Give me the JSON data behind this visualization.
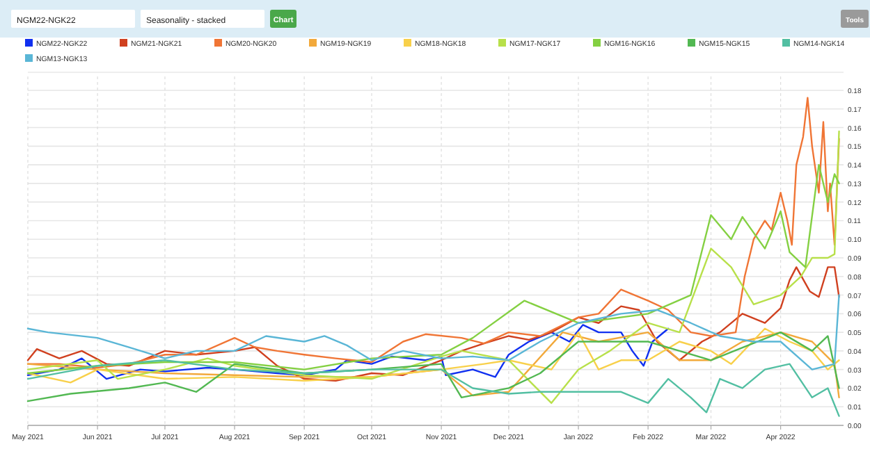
{
  "chart_data": {
    "type": "line",
    "annotations": [
      "NGM22-NGK22",
      "Seasonality - stacked",
      "Chart",
      "Tools"
    ],
    "legend": "top",
    "grid": true,
    "marker": "none",
    "line_style": "solid",
    "xlim": [
      "2021-05-01",
      "2022-04-29"
    ],
    "xticks": [
      {
        "value": "2021-05-01",
        "label": "May 2021"
      },
      {
        "value": "2021-06-01",
        "label": "Jun 2021"
      },
      {
        "value": "2021-07-01",
        "label": "Jul 2021"
      },
      {
        "value": "2021-08-01",
        "label": "Aug 2021"
      },
      {
        "value": "2021-09-01",
        "label": "Sep 2021"
      },
      {
        "value": "2021-10-01",
        "label": "Oct 2021"
      },
      {
        "value": "2021-11-01",
        "label": "Nov 2021"
      },
      {
        "value": "2021-12-01",
        "label": "Dec 2021"
      },
      {
        "value": "2022-01-01",
        "label": "Jan 2022"
      },
      {
        "value": "2022-02-01",
        "label": "Feb 2022"
      },
      {
        "value": "2022-03-01",
        "label": "Mar 2022"
      },
      {
        "value": "2022-04-01",
        "label": "Apr 2022"
      }
    ],
    "ylim": [
      0,
      0.18
    ],
    "yticks": [
      {
        "value": 0,
        "label": "0.00"
      },
      {
        "value": 0.01,
        "label": "0.01"
      },
      {
        "value": 0.02,
        "label": "0.02"
      },
      {
        "value": 0.03,
        "label": "0.03"
      },
      {
        "value": 0.04,
        "label": "0.04"
      },
      {
        "value": 0.05,
        "label": "0.05"
      },
      {
        "value": 0.06,
        "label": "0.06"
      },
      {
        "value": 0.07,
        "label": "0.07"
      },
      {
        "value": 0.08,
        "label": "0.08"
      },
      {
        "value": 0.09,
        "label": "0.09"
      },
      {
        "value": 0.1,
        "label": "0.10"
      },
      {
        "value": 0.11,
        "label": "0.11"
      },
      {
        "value": 0.12,
        "label": "0.12"
      },
      {
        "value": 0.13,
        "label": "0.13"
      },
      {
        "value": 0.14,
        "label": "0.14"
      },
      {
        "value": 0.15,
        "label": "0.15"
      },
      {
        "value": 0.16,
        "label": "0.16"
      },
      {
        "value": 0.17,
        "label": "0.17"
      },
      {
        "value": 0.18,
        "label": "0.18"
      }
    ],
    "series": [
      {
        "name": "NGM22-NGK22",
        "color": "#1030f0",
        "x": [
          "2021-05-01",
          "2021-05-15",
          "2021-05-25",
          "2021-06-05",
          "2021-06-20",
          "2021-07-01",
          "2021-07-20",
          "2021-08-01",
          "2021-08-20",
          "2021-09-01",
          "2021-09-15",
          "2021-09-20",
          "2021-10-01",
          "2021-10-10",
          "2021-10-25",
          "2021-11-01",
          "2021-11-03",
          "2021-11-15",
          "2021-11-25",
          "2021-12-01",
          "2021-12-10",
          "2021-12-20",
          "2021-12-28",
          "2022-01-03",
          "2022-01-10",
          "2022-01-20",
          "2022-01-25",
          "2022-01-30",
          "2022-02-03",
          "2022-02-10"
        ],
        "values": [
          0.027,
          0.03,
          0.036,
          0.025,
          0.03,
          0.029,
          0.031,
          0.03,
          0.028,
          0.027,
          0.03,
          0.035,
          0.033,
          0.037,
          0.035,
          0.037,
          0.027,
          0.03,
          0.026,
          0.038,
          0.045,
          0.05,
          0.045,
          0.054,
          0.05,
          0.05,
          0.04,
          0.032,
          0.045,
          0.052
        ]
      },
      {
        "name": "NGM21-NGK21",
        "color": "#d0401f",
        "x": [
          "2021-05-01",
          "2021-05-05",
          "2021-05-15",
          "2021-05-25",
          "2021-06-05",
          "2021-06-15",
          "2021-07-01",
          "2021-07-15",
          "2021-08-01",
          "2021-08-10",
          "2021-08-20",
          "2021-09-01",
          "2021-09-15",
          "2021-10-01",
          "2021-10-15",
          "2021-11-01",
          "2021-11-10",
          "2021-11-20",
          "2021-12-01",
          "2021-12-10",
          "2021-12-20",
          "2022-01-01",
          "2022-01-10",
          "2022-01-20",
          "2022-01-28",
          "2022-02-05",
          "2022-02-15",
          "2022-02-25",
          "2022-03-05",
          "2022-03-15",
          "2022-03-25",
          "2022-04-01",
          "2022-04-05",
          "2022-04-08",
          "2022-04-14",
          "2022-04-18",
          "2022-04-22",
          "2022-04-25",
          "2022-04-27"
        ],
        "values": [
          0.035,
          0.041,
          0.036,
          0.04,
          0.033,
          0.032,
          0.04,
          0.038,
          0.04,
          0.042,
          0.032,
          0.025,
          0.024,
          0.028,
          0.027,
          0.035,
          0.04,
          0.044,
          0.048,
          0.046,
          0.05,
          0.058,
          0.055,
          0.064,
          0.062,
          0.045,
          0.035,
          0.045,
          0.05,
          0.06,
          0.055,
          0.063,
          0.078,
          0.085,
          0.072,
          0.069,
          0.085,
          0.085,
          0.069
        ]
      },
      {
        "name": "NGM20-NGK20",
        "color": "#f07535",
        "x": [
          "2021-05-01",
          "2021-05-15",
          "2021-06-01",
          "2021-06-15",
          "2021-07-01",
          "2021-07-15",
          "2021-08-01",
          "2021-08-10",
          "2021-08-20",
          "2021-09-01",
          "2021-09-15",
          "2021-10-01",
          "2021-10-15",
          "2021-10-25",
          "2021-11-10",
          "2021-11-20",
          "2021-12-01",
          "2021-12-15",
          "2022-01-01",
          "2022-01-10",
          "2022-01-20",
          "2022-02-01",
          "2022-02-10",
          "2022-02-20",
          "2022-03-01",
          "2022-03-12",
          "2022-03-16",
          "2022-03-20",
          "2022-03-25",
          "2022-03-28",
          "2022-04-01",
          "2022-04-04",
          "2022-04-06",
          "2022-04-08",
          "2022-04-11",
          "2022-04-13",
          "2022-04-15",
          "2022-04-18",
          "2022-04-20",
          "2022-04-22",
          "2022-04-23",
          "2022-04-25",
          "2022-04-27"
        ],
        "values": [
          0.033,
          0.033,
          0.031,
          0.033,
          0.038,
          0.038,
          0.047,
          0.042,
          0.04,
          0.038,
          0.036,
          0.034,
          0.045,
          0.049,
          0.047,
          0.044,
          0.05,
          0.048,
          0.058,
          0.06,
          0.073,
          0.067,
          0.062,
          0.05,
          0.048,
          0.05,
          0.08,
          0.1,
          0.11,
          0.105,
          0.125,
          0.11,
          0.097,
          0.14,
          0.155,
          0.176,
          0.15,
          0.125,
          0.163,
          0.115,
          0.13,
          0.097,
          0.154
        ]
      },
      {
        "name": "NGM19-NGK19",
        "color": "#f2a93b",
        "x": [
          "2021-05-01",
          "2021-06-01",
          "2021-07-01",
          "2021-08-01",
          "2021-09-01",
          "2021-10-01",
          "2021-11-01",
          "2021-11-15",
          "2021-12-01",
          "2021-12-10",
          "2021-12-25",
          "2022-01-10",
          "2022-02-01",
          "2022-02-15",
          "2022-03-01",
          "2022-03-15",
          "2022-04-01",
          "2022-04-15",
          "2022-04-25",
          "2022-04-27"
        ],
        "values": [
          0.033,
          0.03,
          0.028,
          0.027,
          0.026,
          0.026,
          0.03,
          0.016,
          0.018,
          0.03,
          0.05,
          0.045,
          0.05,
          0.035,
          0.035,
          0.045,
          0.05,
          0.045,
          0.033,
          0.015
        ]
      },
      {
        "name": "NGM18-NGK18",
        "color": "#f8d04a",
        "x": [
          "2021-05-01",
          "2021-05-20",
          "2021-06-01",
          "2021-07-01",
          "2021-08-01",
          "2021-09-01",
          "2021-10-01",
          "2021-11-01",
          "2021-11-20",
          "2021-12-01",
          "2021-12-20",
          "2022-01-01",
          "2022-01-10",
          "2022-01-20",
          "2022-02-01",
          "2022-02-15",
          "2022-03-01",
          "2022-03-10",
          "2022-03-25",
          "2022-04-05",
          "2022-04-15",
          "2022-04-22",
          "2022-04-27"
        ],
        "values": [
          0.028,
          0.023,
          0.03,
          0.025,
          0.026,
          0.024,
          0.026,
          0.03,
          0.033,
          0.035,
          0.03,
          0.05,
          0.03,
          0.035,
          0.035,
          0.045,
          0.04,
          0.033,
          0.052,
          0.045,
          0.04,
          0.03,
          0.035
        ]
      },
      {
        "name": "NGM17-NGK17",
        "color": "#b8e04a",
        "x": [
          "2021-05-01",
          "2021-06-01",
          "2021-06-10",
          "2021-07-01",
          "2021-07-20",
          "2021-08-01",
          "2021-09-01",
          "2021-10-01",
          "2021-11-01",
          "2021-11-10",
          "2021-12-01",
          "2021-12-20",
          "2022-01-01",
          "2022-01-15",
          "2022-02-01",
          "2022-02-15",
          "2022-03-01",
          "2022-03-10",
          "2022-03-20",
          "2022-04-01",
          "2022-04-10",
          "2022-04-15",
          "2022-04-22",
          "2022-04-25",
          "2022-04-27"
        ],
        "values": [
          0.03,
          0.035,
          0.025,
          0.03,
          0.036,
          0.032,
          0.027,
          0.025,
          0.037,
          0.04,
          0.035,
          0.012,
          0.03,
          0.04,
          0.055,
          0.05,
          0.095,
          0.085,
          0.065,
          0.07,
          0.08,
          0.09,
          0.09,
          0.092,
          0.158
        ]
      },
      {
        "name": "NGM16-NGK16",
        "color": "#84d042",
        "x": [
          "2021-05-01",
          "2021-06-01",
          "2021-07-01",
          "2021-08-01",
          "2021-09-01",
          "2021-10-01",
          "2021-11-01",
          "2021-11-15",
          "2021-12-08",
          "2022-01-01",
          "2022-02-01",
          "2022-02-20",
          "2022-03-01",
          "2022-03-10",
          "2022-03-15",
          "2022-03-25",
          "2022-04-01",
          "2022-04-05",
          "2022-04-12",
          "2022-04-18",
          "2022-04-22",
          "2022-04-25",
          "2022-04-27"
        ],
        "values": [
          0.028,
          0.032,
          0.034,
          0.034,
          0.03,
          0.036,
          0.038,
          0.047,
          0.067,
          0.055,
          0.06,
          0.07,
          0.113,
          0.1,
          0.112,
          0.095,
          0.115,
          0.093,
          0.085,
          0.14,
          0.12,
          0.135,
          0.13
        ]
      },
      {
        "name": "NGM15-NGK15",
        "color": "#52b852",
        "x": [
          "2021-05-01",
          "2021-05-20",
          "2021-06-15",
          "2021-07-01",
          "2021-07-15",
          "2021-08-01",
          "2021-09-01",
          "2021-10-01",
          "2021-11-01",
          "2021-11-10",
          "2021-12-01",
          "2021-12-15",
          "2022-01-01",
          "2022-02-01",
          "2022-02-15",
          "2022-03-01",
          "2022-04-01",
          "2022-04-15",
          "2022-04-22",
          "2022-04-27"
        ],
        "values": [
          0.013,
          0.017,
          0.02,
          0.023,
          0.018,
          0.033,
          0.028,
          0.03,
          0.033,
          0.015,
          0.02,
          0.028,
          0.045,
          0.045,
          0.04,
          0.035,
          0.05,
          0.04,
          0.048,
          0.02
        ]
      },
      {
        "name": "NGM14-NGK14",
        "color": "#52bfa2",
        "x": [
          "2021-05-01",
          "2021-06-01",
          "2021-07-01",
          "2021-08-01",
          "2021-09-01",
          "2021-10-01",
          "2021-11-01",
          "2021-11-15",
          "2021-12-01",
          "2021-12-15",
          "2022-01-01",
          "2022-01-20",
          "2022-02-01",
          "2022-02-10",
          "2022-02-20",
          "2022-02-27",
          "2022-03-05",
          "2022-03-15",
          "2022-03-25",
          "2022-04-05",
          "2022-04-15",
          "2022-04-22",
          "2022-04-27"
        ],
        "values": [
          0.025,
          0.032,
          0.035,
          0.03,
          0.028,
          0.03,
          0.03,
          0.02,
          0.017,
          0.018,
          0.018,
          0.018,
          0.012,
          0.025,
          0.015,
          0.007,
          0.025,
          0.02,
          0.03,
          0.033,
          0.015,
          0.02,
          0.005
        ]
      },
      {
        "name": "NGM13-NGK13",
        "color": "#5ab6d6",
        "x": [
          "2021-05-01",
          "2021-05-10",
          "2021-06-01",
          "2021-06-15",
          "2021-07-01",
          "2021-07-15",
          "2021-08-01",
          "2021-08-15",
          "2021-09-01",
          "2021-09-10",
          "2021-09-20",
          "2021-10-01",
          "2021-10-15",
          "2021-11-01",
          "2021-11-15",
          "2021-12-01",
          "2021-12-15",
          "2022-01-01",
          "2022-01-20",
          "2022-02-05",
          "2022-02-20",
          "2022-03-05",
          "2022-03-20",
          "2022-04-01",
          "2022-04-15",
          "2022-04-25",
          "2022-04-27"
        ],
        "values": [
          0.052,
          0.05,
          0.047,
          0.042,
          0.036,
          0.04,
          0.04,
          0.048,
          0.045,
          0.048,
          0.043,
          0.035,
          0.04,
          0.036,
          0.037,
          0.035,
          0.045,
          0.055,
          0.06,
          0.062,
          0.055,
          0.048,
          0.045,
          0.045,
          0.03,
          0.033,
          0.07
        ]
      }
    ]
  }
}
